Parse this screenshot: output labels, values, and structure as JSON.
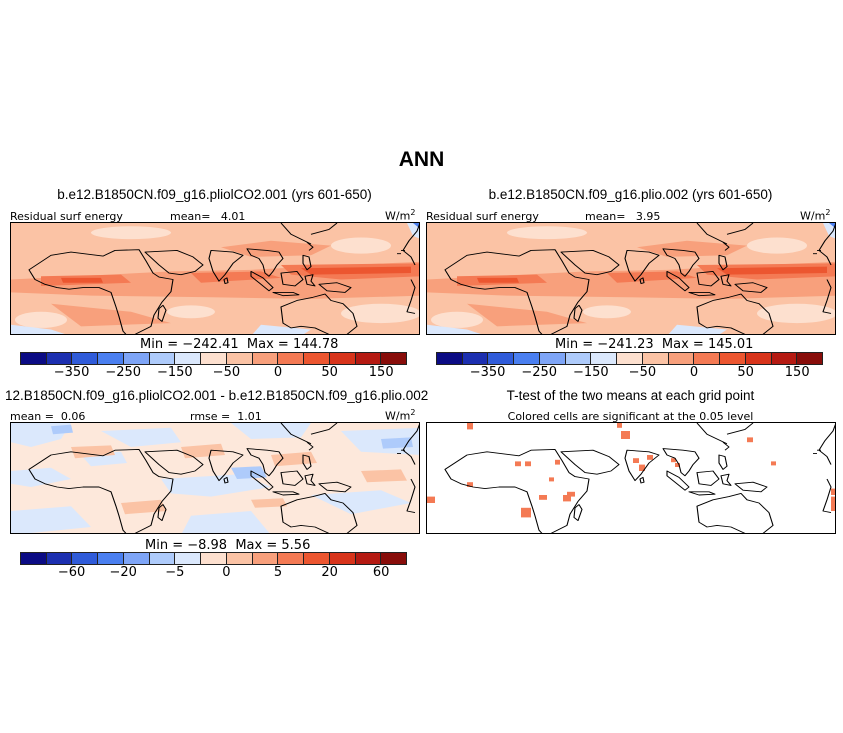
{
  "main_title": "ANN",
  "panels": {
    "p1": {
      "title": "b.e12.B1850CN.f09_g16.pliolCO2.001 (yrs 601-650)",
      "var_label": "Residual surf energy",
      "mean_label": "mean=",
      "mean_value": "4.01",
      "units": "W/m",
      "units_exp": "2",
      "min_label": "Min =",
      "min_value": "−242.41",
      "max_label": "Max =",
      "max_value": "144.78"
    },
    "p2": {
      "title": "b.e12.B1850CN.f09_g16.plio.002 (yrs 601-650)",
      "var_label": "Residual surf energy",
      "mean_label": "mean=",
      "mean_value": "3.95",
      "units": "W/m",
      "units_exp": "2",
      "min_label": "Min =",
      "min_value": "−241.23",
      "max_label": "Max =",
      "max_value": "145.01"
    },
    "p3": {
      "title": "12.B1850CN.f09_g16.pliolCO2.001 - b.e12.B1850CN.f09_g16.plio.002",
      "mean_label": "mean =",
      "mean_value": "0.06",
      "rmse_label": "rmse =",
      "rmse_value": "1.01",
      "units": "W/m",
      "units_exp": "2",
      "min_label": "Min =",
      "min_value": "−8.98",
      "max_label": "Max =",
      "max_value": "5.56"
    },
    "p4": {
      "title": "T-test of the two means at each grid point",
      "subtitle": "Colored cells are significant at the 0.05 level"
    }
  },
  "colorbar": {
    "colors": [
      "#0b0b84",
      "#1c2fb0",
      "#2f5bd9",
      "#4a7ff0",
      "#7ea5f7",
      "#aecbfb",
      "#dbe8fc",
      "#fde0cf",
      "#fbc3a5",
      "#f8a07c",
      "#f47a54",
      "#ec5630",
      "#d8341b",
      "#b51a12",
      "#880d0a"
    ],
    "ticks_full": [
      "−350",
      "−250",
      "−150",
      "−50",
      "0",
      "50",
      "150"
    ],
    "ticks_diff": [
      "−60",
      "−20",
      "−5",
      "0",
      "5",
      "20",
      "60"
    ]
  }
}
